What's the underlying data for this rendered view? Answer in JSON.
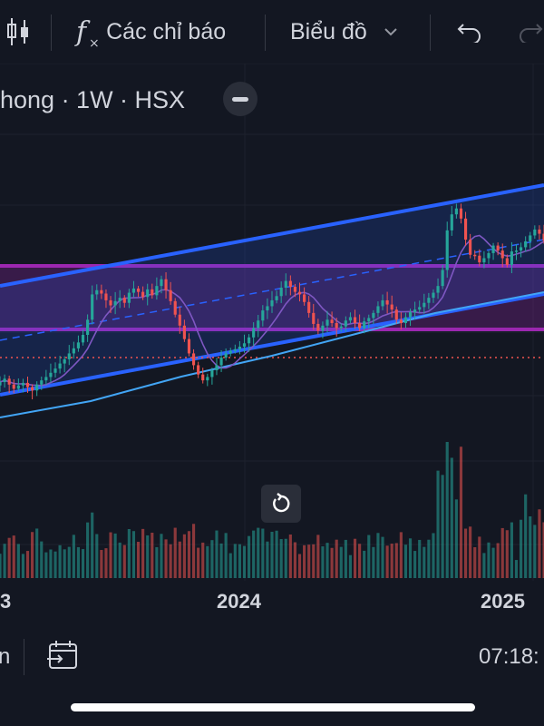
{
  "toolbar": {
    "indicators_label": "Các chỉ báo",
    "chart_type_label": "Biểu đồ"
  },
  "legend": {
    "symbol_text": "hong · 1W · HSX"
  },
  "x_axis": {
    "labels": [
      "3",
      "2024",
      "2025"
    ]
  },
  "bottom_bar": {
    "left_fragment": "n",
    "time": "07:18:"
  },
  "colors": {
    "background": "#131722",
    "up": "#26a69a",
    "down": "#ef5350",
    "channel_line": "#2962ff",
    "range_box": "#9c27b0",
    "moving_avg_fast": "#7e57c2",
    "moving_avg_slow": "#42a5f5"
  },
  "chart_data": {
    "type": "candlestick",
    "interval": "1W",
    "exchange": "HSX",
    "x_tick_labels": [
      "3",
      "2024",
      "2025"
    ],
    "close": [
      28.2,
      28.6,
      27.9,
      27.4,
      27.8,
      28.1,
      27.6,
      27.2,
      27.9,
      28.4,
      28.8,
      29.3,
      29.8,
      30.4,
      30.9,
      31.6,
      32.2,
      32.9,
      33.8,
      35.6,
      38.6,
      39.1,
      38.7,
      37.9,
      37.3,
      37.8,
      38.2,
      37.6,
      38.8,
      39.3,
      38.9,
      38.3,
      39.2,
      38.5,
      39.6,
      40.4,
      39.1,
      37.8,
      36.2,
      34.9,
      33.3,
      31.6,
      30.2,
      29.1,
      28.4,
      28.8,
      29.6,
      30.2,
      31.1,
      31.6,
      31.9,
      32.1,
      32.4,
      32.8,
      33.5,
      34.6,
      35.5,
      36.7,
      37.2,
      37.9,
      38.4,
      39.4,
      40.2,
      39.5,
      38.9,
      38.6,
      37.7,
      36.4,
      35.1,
      34.3,
      34.9,
      35.6,
      35.2,
      34.6,
      34.8,
      35.5,
      35.9,
      35.2,
      34.6,
      35.4,
      35.8,
      36.4,
      37.2,
      37.9,
      37.4,
      36.8,
      35.6,
      35.2,
      35.9,
      36.5,
      36.8,
      37.1,
      37.6,
      38.2,
      38.8,
      39.6,
      41.5,
      46.2,
      48.1,
      48.8,
      47.6,
      45.1,
      43.3,
      43.2,
      42.4,
      42.9,
      43.5,
      44.4,
      43.8,
      42.9,
      42.1,
      43.7,
      43.8,
      44.2,
      44.9,
      45.6,
      46.3,
      45.8,
      45.0
    ]
  }
}
